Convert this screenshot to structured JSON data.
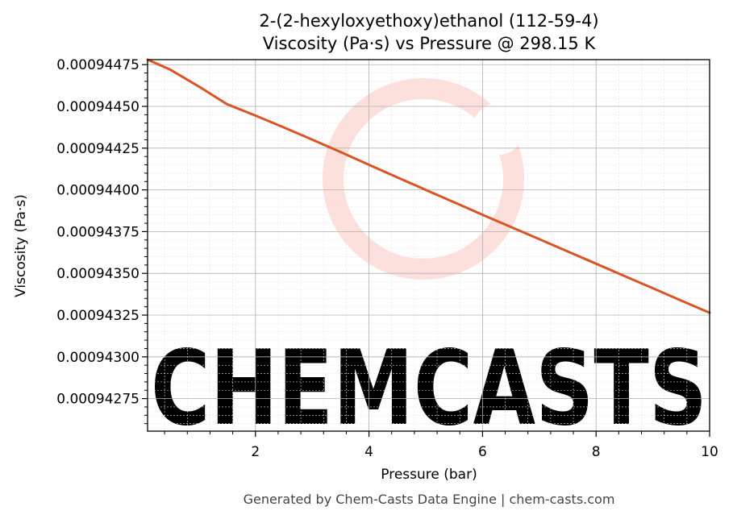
{
  "chart_data": {
    "type": "line",
    "title_lines": [
      "2-(2-hexyloxyethoxy)ethanol (112-59-4)",
      "Viscosity (Pa·s) vs Pressure @ 298.15 K"
    ],
    "xlabel": "Pressure (bar)",
    "ylabel": "Viscosity (Pa·s)",
    "xlim": [
      0.1,
      10
    ],
    "ylim": [
      0.000942555,
      0.00094478
    ],
    "x_ticks": [
      2,
      4,
      6,
      8,
      10
    ],
    "x_tick_labels": [
      "2",
      "4",
      "6",
      "8",
      "10"
    ],
    "y_ticks": [
      0.00094275,
      0.000943,
      0.00094325,
      0.0009435,
      0.00094375,
      0.000944,
      0.00094425,
      0.0009445,
      0.00094475
    ],
    "y_tick_labels": [
      "0.00094275",
      "0.00094300",
      "0.00094325",
      "0.00094350",
      "0.00094375",
      "0.00094400",
      "0.00094425",
      "0.00094450",
      "0.00094475"
    ],
    "grid": true,
    "series": [
      {
        "color": "#d95525",
        "x": [
          0.1,
          0.5,
          1,
          1.5,
          2,
          2.5,
          3,
          3.5,
          4,
          4.5,
          5,
          5.5,
          6,
          6.5,
          7,
          7.5,
          8,
          8.5,
          9,
          9.5,
          10
        ],
        "y": [
          0.00094478,
          0.00094472,
          0.00094462,
          0.000944513,
          0.000944445,
          0.000944374,
          0.000944301,
          0.000944227,
          0.00094415,
          0.000944075,
          0.000944,
          0.000943926,
          0.000943851,
          0.000943778,
          0.000943705,
          0.000943631,
          0.000943558,
          0.000943484,
          0.000943411,
          0.000943337,
          0.000943264
        ]
      }
    ]
  },
  "watermark": {
    "text": "CHEMCASTS",
    "color": "#fde0dc"
  },
  "footer": "Generated by Chem-Casts Data Engine | chem-casts.com"
}
